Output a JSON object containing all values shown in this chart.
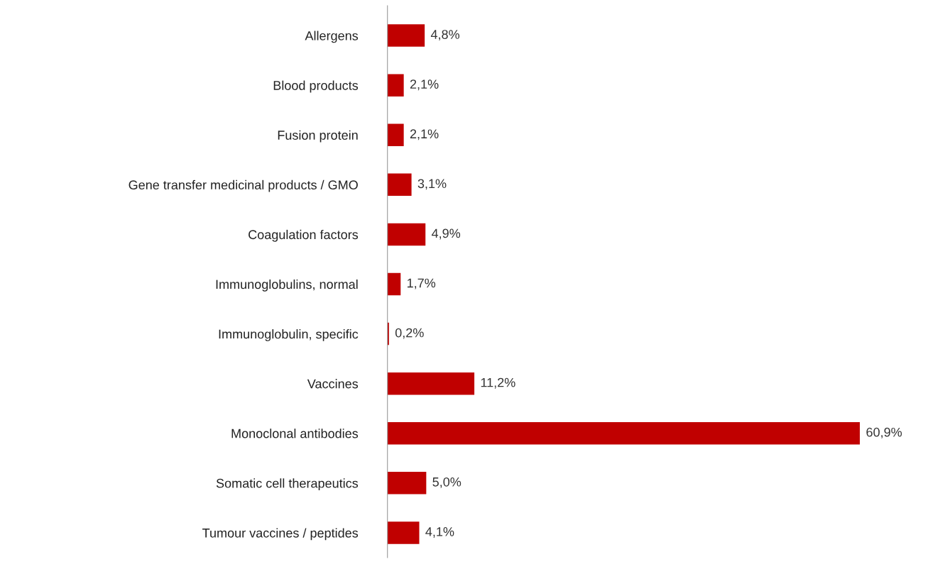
{
  "chart_data": {
    "type": "bar",
    "orientation": "horizontal",
    "categories": [
      "Allergens",
      "Blood products",
      "Fusion protein",
      "Gene transfer medicinal products / GMO",
      "Coagulation factors",
      "Immunoglobulins, normal",
      "Immunoglobulin, specific",
      "Vaccines",
      "Monoclonal antibodies",
      "Somatic cell therapeutics",
      "Tumour vaccines / peptides"
    ],
    "values": [
      4.8,
      2.1,
      2.1,
      3.1,
      4.9,
      1.7,
      0.2,
      11.2,
      60.9,
      5.0,
      4.1
    ],
    "value_labels": [
      "4,8%",
      "2,1%",
      "2,1%",
      "3,1%",
      "4,9%",
      "1,7%",
      "0,2%",
      "11,2%",
      "60,9%",
      "5,0%",
      "4,1%"
    ],
    "color": "#c00000",
    "grid": false,
    "tick_labels": "y"
  }
}
